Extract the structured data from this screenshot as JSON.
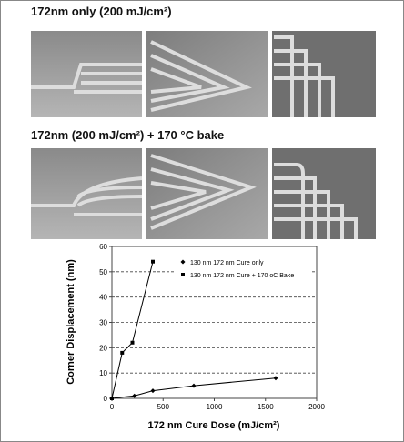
{
  "panels": {
    "label_1": "172nm only (200 mJ/cm²)",
    "label_2": "172nm (200 mJ/cm²) + 170 °C bake"
  },
  "chart_data": {
    "type": "line",
    "x_label": "172 nm Cure Dose (mJ/cm²)",
    "y_label": "Corner Displacement (nm)",
    "xlim": [
      0,
      2000
    ],
    "xticks": [
      0,
      500,
      1000,
      1500,
      2000
    ],
    "ylim": [
      0,
      60
    ],
    "yticks": [
      0,
      10,
      20,
      30,
      40,
      50,
      60
    ],
    "grid": true,
    "series": [
      {
        "name": "130 nm 172 nm Cure only",
        "color": "#000000",
        "marker": "diamond",
        "x": [
          0,
          220,
          400,
          800,
          1600
        ],
        "values": [
          0,
          1,
          3,
          5,
          8
        ]
      },
      {
        "name": "130 nm 172 nm Cure + 170 oC Bake",
        "color": "#000000",
        "marker": "square",
        "x": [
          0,
          100,
          200,
          400
        ],
        "values": [
          0,
          18,
          22,
          54
        ]
      }
    ]
  }
}
